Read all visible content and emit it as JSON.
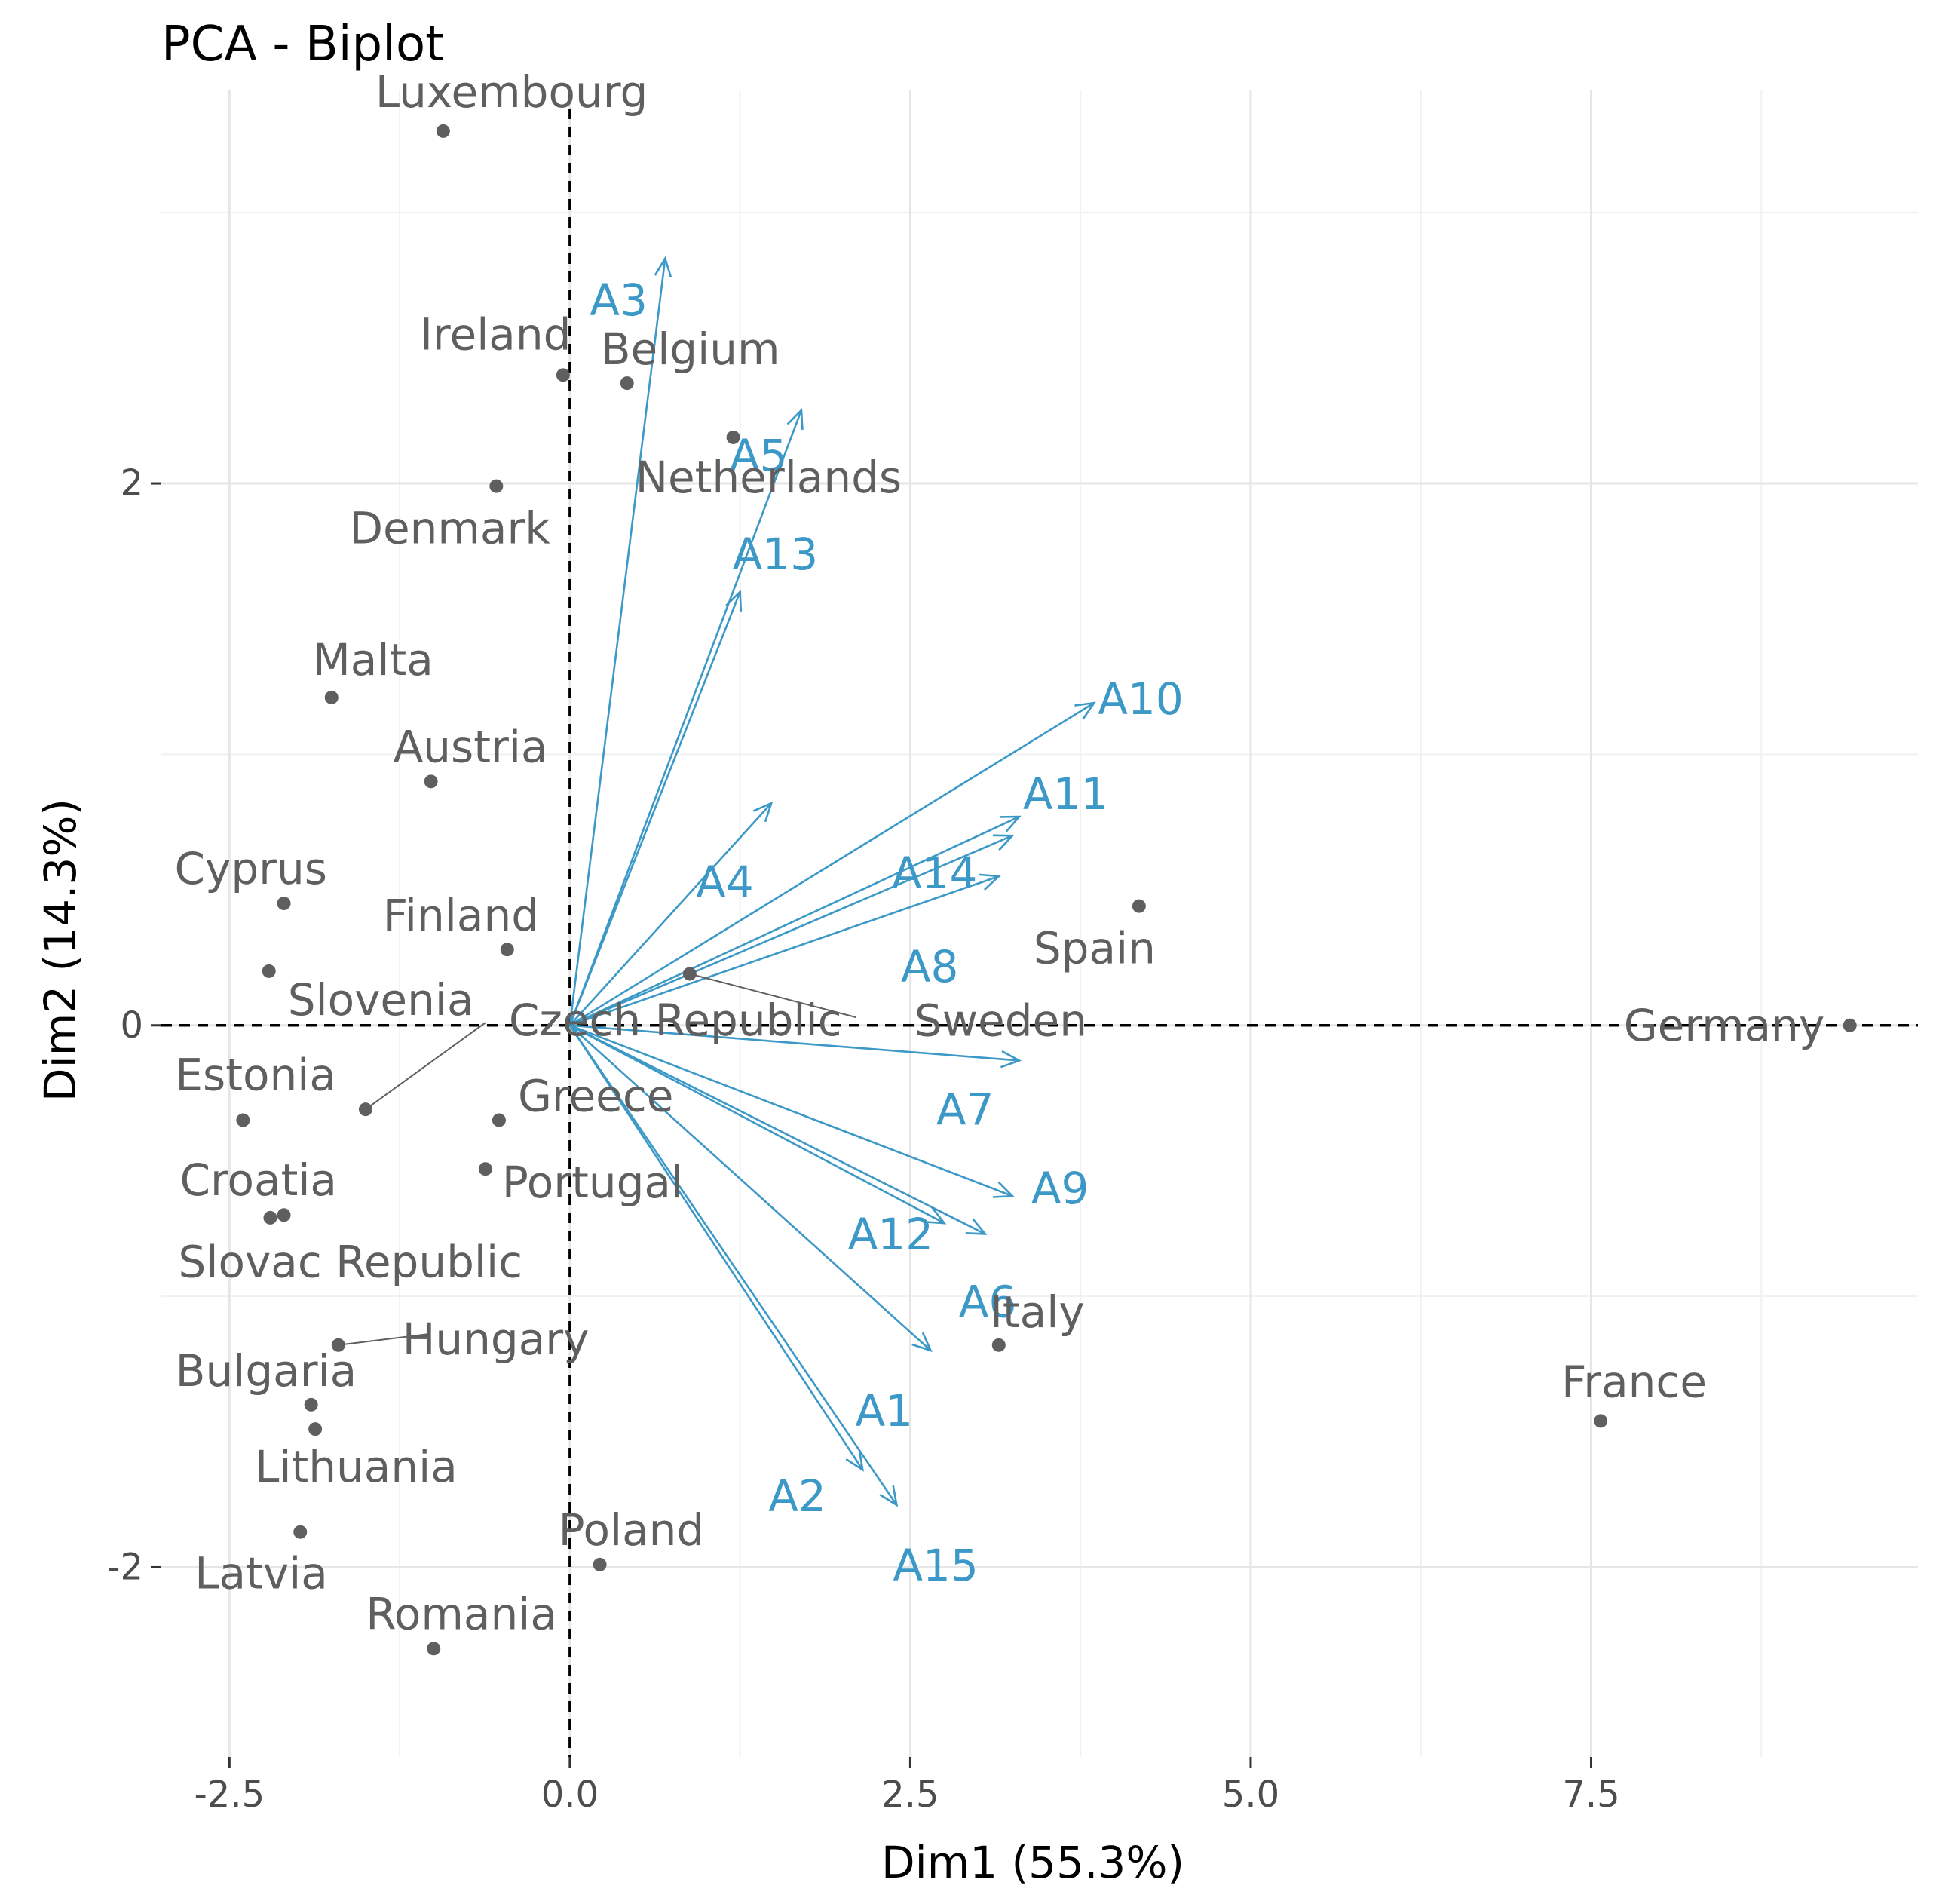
{
  "chart_data": {
    "type": "scatter",
    "title": "PCA - Biplot",
    "xlabel": "Dim1 (55.3%)",
    "ylabel": "Dim2 (14.3%)",
    "xlim": [
      -3.0,
      9.9
    ],
    "ylim": [
      -2.7,
      3.45
    ],
    "x_ticks": [
      {
        "value": -2.5,
        "label": "-2.5"
      },
      {
        "value": 0.0,
        "label": "0.0"
      },
      {
        "value": 2.5,
        "label": "2.5"
      },
      {
        "value": 5.0,
        "label": "5.0"
      },
      {
        "value": 7.5,
        "label": "7.5"
      }
    ],
    "y_ticks": [
      {
        "value": -2,
        "label": "-2"
      },
      {
        "value": 0,
        "label": "0"
      },
      {
        "value": 2,
        "label": "2"
      }
    ],
    "x_minor_grid": [
      -1.25,
      1.25,
      3.75,
      6.25,
      8.75
    ],
    "y_minor_grid": [
      -1,
      1,
      3
    ],
    "grid": true,
    "colors": {
      "individuals": "#5f5f5f",
      "variables": "#3c99c7",
      "grid_major": "#e6e6e6",
      "grid_minor": "#f1f1f1",
      "axis_text": "#4d4d4d",
      "title": "#000000"
    },
    "individuals": [
      {
        "name": "Luxembourg",
        "x": -0.93,
        "y": 3.3
      },
      {
        "name": "Ireland",
        "x": -0.05,
        "y": 2.4
      },
      {
        "name": "Belgium",
        "x": 0.42,
        "y": 2.37
      },
      {
        "name": "Netherlands",
        "x": 1.2,
        "y": 2.17
      },
      {
        "name": "Denmark",
        "x": -0.54,
        "y": 1.99
      },
      {
        "name": "Malta",
        "x": -1.75,
        "y": 1.21
      },
      {
        "name": "Austria",
        "x": -1.02,
        "y": 0.9
      },
      {
        "name": "Cyprus",
        "x": -2.1,
        "y": 0.45
      },
      {
        "name": "Finland",
        "x": -0.46,
        "y": 0.28
      },
      {
        "name": "Slovenia",
        "x": -2.21,
        "y": 0.2
      },
      {
        "name": "Czech Republic",
        "x": -1.5,
        "y": -0.31
      },
      {
        "name": "Sweden",
        "x": 0.88,
        "y": 0.19
      },
      {
        "name": "Spain",
        "x": 4.18,
        "y": 0.44
      },
      {
        "name": "Germany",
        "x": 9.4,
        "y": 0.0
      },
      {
        "name": "Estonia",
        "x": -2.4,
        "y": -0.35
      },
      {
        "name": "Greece",
        "x": -0.52,
        "y": -0.35
      },
      {
        "name": "Portugal",
        "x": -0.62,
        "y": -0.53
      },
      {
        "name": "Croatia",
        "x": -2.2,
        "y": -0.71
      },
      {
        "name": "Slovac Republic",
        "x": -2.1,
        "y": -0.7
      },
      {
        "name": "Hungary",
        "x": -1.7,
        "y": -1.18
      },
      {
        "name": "Bulgaria",
        "x": -1.9,
        "y": -1.4
      },
      {
        "name": "Lithuania",
        "x": -1.87,
        "y": -1.49
      },
      {
        "name": "Latvia",
        "x": -1.98,
        "y": -1.87
      },
      {
        "name": "Poland",
        "x": 0.22,
        "y": -1.99
      },
      {
        "name": "Romania",
        "x": -1.0,
        "y": -2.3
      },
      {
        "name": "Italy",
        "x": 3.15,
        "y": -1.18
      },
      {
        "name": "France",
        "x": 7.57,
        "y": -1.46
      }
    ],
    "variables": [
      {
        "name": "A3",
        "x": 0.7,
        "y": 2.83
      },
      {
        "name": "A5",
        "x": 1.7,
        "y": 2.27
      },
      {
        "name": "A13",
        "x": 1.25,
        "y": 1.6
      },
      {
        "name": "A10",
        "x": 3.85,
        "y": 1.19
      },
      {
        "name": "A11",
        "x": 3.3,
        "y": 0.77
      },
      {
        "name": "A14",
        "x": 3.25,
        "y": 0.7
      },
      {
        "name": "A8",
        "x": 3.15,
        "y": 0.55
      },
      {
        "name": "A4",
        "x": 1.48,
        "y": 0.82
      },
      {
        "name": "A7",
        "x": 3.3,
        "y": -0.13
      },
      {
        "name": "A9",
        "x": 3.25,
        "y": -0.63
      },
      {
        "name": "A12",
        "x": 2.75,
        "y": -0.73
      },
      {
        "name": "A6",
        "x": 3.05,
        "y": -0.77
      },
      {
        "name": "A1",
        "x": 2.65,
        "y": -1.2
      },
      {
        "name": "A2",
        "x": 2.15,
        "y": -1.64
      },
      {
        "name": "A15",
        "x": 2.4,
        "y": -1.77
      }
    ]
  }
}
